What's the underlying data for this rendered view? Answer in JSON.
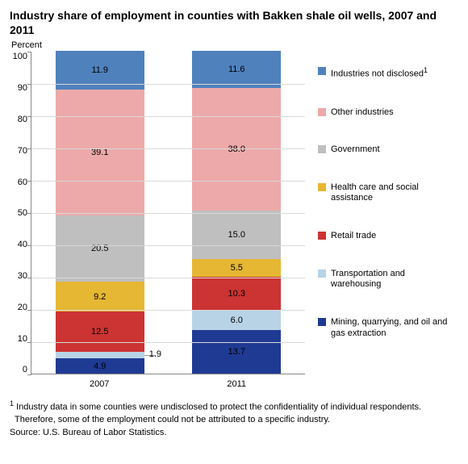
{
  "chart": {
    "type": "stacked-bar",
    "title": "Industry share of employment in counties with Bakken shale oil wells, 2007 and 2011",
    "ylabel": "Percent",
    "ylim": [
      0,
      100
    ],
    "ytick_step": 10,
    "yticks": [
      0,
      10,
      20,
      30,
      40,
      50,
      60,
      70,
      80,
      90,
      100
    ],
    "background_color": "#ffffff",
    "grid_color": "#d9d9d9",
    "axis_color": "#888888",
    "categories": [
      "2007",
      "2011"
    ],
    "series_order_bottom_to_top": [
      "mining",
      "transport",
      "retail",
      "health",
      "govt",
      "other",
      "undisclosed"
    ],
    "series": {
      "undisclosed": {
        "label": "Industries not disclosed",
        "color": "#4f81bd",
        "sup": "1"
      },
      "other": {
        "label": "Other industries",
        "color": "#eda9a9"
      },
      "govt": {
        "label": "Government",
        "color": "#bfbfbf"
      },
      "health": {
        "label": "Health care and social assistance",
        "color": "#e6b733"
      },
      "retail": {
        "label": "Retail trade",
        "color": "#cc3333"
      },
      "transport": {
        "label": "Transportation and warehousing",
        "color": "#b8d3e6"
      },
      "mining": {
        "label": "Mining, quarrying, and oil and gas extraction",
        "color": "#1f3a93"
      }
    },
    "data": {
      "2007": {
        "mining": 4.9,
        "transport": 1.9,
        "retail": 12.5,
        "health": 9.2,
        "govt": 20.5,
        "other": 39.1,
        "undisclosed": 11.9
      },
      "2011": {
        "mining": 13.7,
        "transport": 6.0,
        "retail": 10.3,
        "health": 5.5,
        "govt": 15.0,
        "other": 38.0,
        "undisclosed": 11.6
      }
    },
    "label_fontsize": 11,
    "title_fontsize": 14,
    "footnote_marker": "1",
    "footnote": "Industry data in some counties were undisclosed to protect the confidentiality of individual respondents. Therefore, some of the employment could not be attributed to a specific industry.",
    "source": "Source: U.S. Bureau of Labor Statistics."
  }
}
